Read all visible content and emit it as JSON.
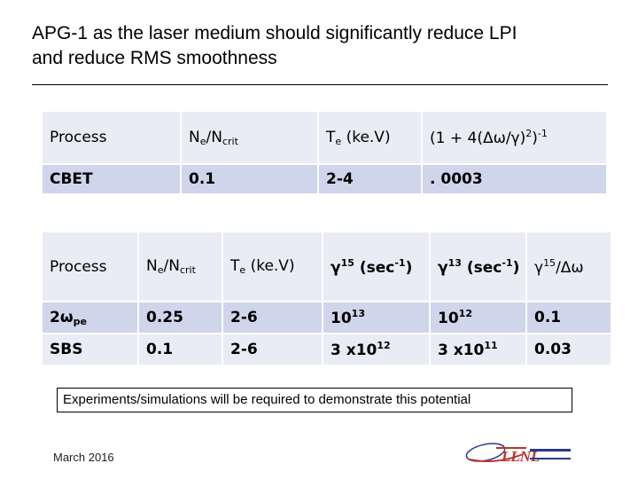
{
  "slide": {
    "title_line1": "APG-1 as the laser medium should significantly reduce LPI",
    "title_line2": "and reduce RMS smoothness",
    "note": "Experiments/simulations will be required to demonstrate this potential",
    "footer_date": "March 2016"
  },
  "table1": {
    "header": {
      "process": "Process",
      "ne_n": "N",
      "ne_sub": "e",
      "ne_slash": "/N",
      "ne_sub2": "crit",
      "te_t": "T",
      "te_sub": "e",
      "te_unit": " (ke.V)",
      "factor": "(1 + 4(Δω/γ)",
      "factor_sup1": "2",
      "factor_close": ")",
      "factor_sup2": "-1"
    },
    "rows": [
      {
        "process": "CBET",
        "ne": "0.1",
        "te": "2-4",
        "factor": ". 0003"
      }
    ]
  },
  "table2": {
    "header": {
      "process": "Process",
      "ne_n": "N",
      "ne_sub": "e",
      "ne_slash": "/N",
      "ne_sub2": "crit",
      "te_t": "T",
      "te_sub": "e",
      "te_unit": " (ke.V)",
      "g15_g": "γ",
      "g15_sup": "15",
      "g15_unit": " (sec",
      "g15_unit_sup": "-1",
      "g15_close": ")",
      "g13_g": "γ",
      "g13_sup": "13",
      "g13_unit": " (sec",
      "g13_unit_sup": "-1",
      "g13_close": ")",
      "ratio_g": "γ",
      "ratio_sup": "15",
      "ratio_rest": "/Δω"
    },
    "rows": [
      {
        "process": "2ω",
        "process_sub": "pe",
        "ne": "0.25",
        "te": "2-6",
        "g15_base": "10",
        "g15_exp": "13",
        "g13_base": "10",
        "g13_exp": "12",
        "ratio": "0.1"
      },
      {
        "process": "SBS",
        "process_sub": "",
        "ne": "0.1",
        "te": "2-6",
        "g15_base": "3 x10",
        "g15_exp": "12",
        "g13_base": "3 x10",
        "g13_exp": "11",
        "ratio": "0.03"
      }
    ]
  },
  "logo": {
    "text": "LLNL",
    "accent": "#c0302a",
    "secondary": "#2b3a8a"
  }
}
